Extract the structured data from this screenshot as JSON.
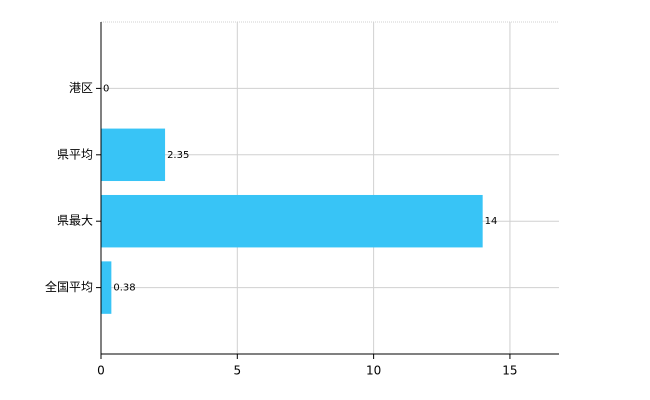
{
  "chart_data": {
    "type": "hbar",
    "categories": [
      "港区",
      "県平均",
      "県最大",
      "全国平均"
    ],
    "values": [
      0,
      2.35,
      14,
      0.38
    ],
    "color": "#38c4f6",
    "xlim": [
      0,
      16.8
    ],
    "xticks": [
      0,
      5,
      10,
      15
    ],
    "grid": true
  }
}
